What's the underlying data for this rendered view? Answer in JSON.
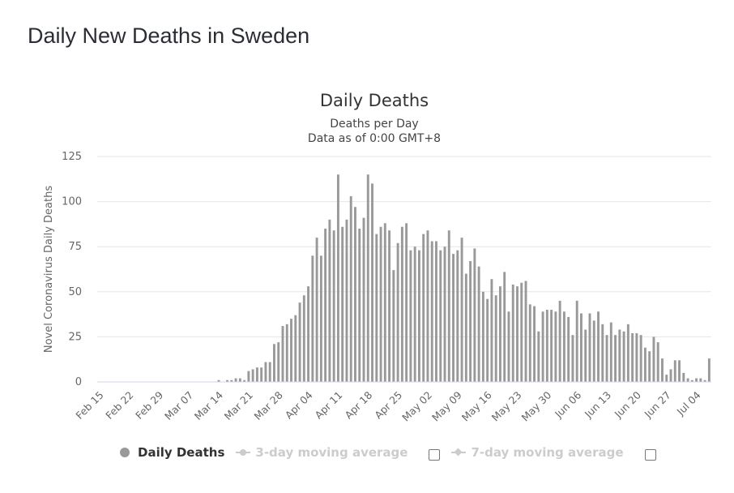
{
  "page": {
    "title": "Daily New Deaths in Sweden"
  },
  "chart_data": {
    "type": "bar",
    "title": "Daily Deaths",
    "subtitle_lines": [
      "Deaths per Day",
      "Data as of 0:00 GMT+8"
    ],
    "ylabel": "Novel Coronavirus Daily Deaths",
    "xlabel": "",
    "ylim": [
      0,
      125
    ],
    "yticks": [
      "0",
      "25",
      "50",
      "75",
      "100",
      "125"
    ],
    "xtick_labels": [
      "Feb 15",
      "Feb 22",
      "Feb 29",
      "Mar 07",
      "Mar 14",
      "Mar 21",
      "Mar 28",
      "Apr 04",
      "Apr 11",
      "Apr 18",
      "Apr 25",
      "May 02",
      "May 09",
      "May 16",
      "May 23",
      "May 30",
      "Jun 06",
      "Jun 13",
      "Jun 20",
      "Jun 27",
      "Jul 04"
    ],
    "xtick_step_days": 7,
    "first_date": "Feb 15",
    "bar_color": "#999999",
    "grid": true,
    "series": [
      {
        "name": "Daily Deaths",
        "values": [
          0,
          0,
          0,
          0,
          0,
          0,
          0,
          0,
          0,
          0,
          0,
          0,
          0,
          0,
          0,
          0,
          0,
          0,
          0,
          0,
          0,
          0,
          0,
          0,
          0,
          0,
          0,
          0,
          1,
          0,
          1,
          1,
          2,
          2,
          1,
          6,
          7,
          8,
          8,
          11,
          11,
          21,
          22,
          31,
          32,
          35,
          37,
          44,
          48,
          53,
          70,
          80,
          70,
          85,
          90,
          84,
          115,
          86,
          90,
          103,
          97,
          85,
          91,
          115,
          110,
          82,
          86,
          88,
          84,
          62,
          77,
          86,
          88,
          73,
          75,
          73,
          82,
          84,
          78,
          78,
          73,
          75,
          84,
          71,
          73,
          80,
          60,
          67,
          74,
          64,
          50,
          46,
          57,
          48,
          53,
          61,
          39,
          54,
          53,
          55,
          56,
          43,
          42,
          28,
          39,
          40,
          40,
          39,
          45,
          39,
          36,
          26,
          45,
          38,
          29,
          38,
          34,
          39,
          32,
          26,
          33,
          26,
          29,
          28,
          32,
          27,
          27,
          26,
          19,
          17,
          25,
          22,
          13,
          4,
          7,
          12,
          12,
          5,
          2,
          1,
          2,
          2,
          1,
          13
        ]
      }
    ],
    "legend": {
      "position": "bottom",
      "items": [
        {
          "label": "Daily Deaths",
          "active": true
        },
        {
          "label": "3-day moving average",
          "active": false
        },
        {
          "label": "7-day moving average",
          "active": false
        }
      ]
    }
  }
}
